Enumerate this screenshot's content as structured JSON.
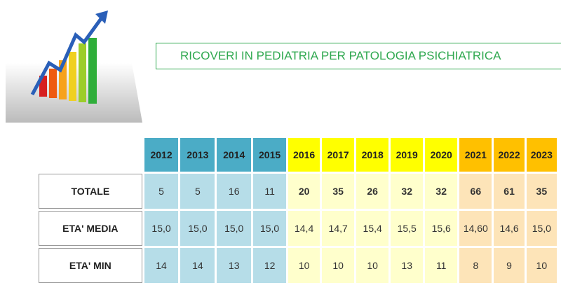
{
  "header": {
    "title": "RICOVERI IN PEDIATRIA PER PATOLOGIA PSICHIATRICA"
  },
  "table": {
    "columns": [
      "2012",
      "2013",
      "2014",
      "2015",
      "2016",
      "2017",
      "2018",
      "2019",
      "2020",
      "2021",
      "2022",
      "2023"
    ],
    "rows": [
      {
        "label": "TOTALE",
        "cells": [
          "5",
          "5",
          "16",
          "11",
          "20",
          "35",
          "26",
          "32",
          "32",
          "66",
          "61",
          "35"
        ]
      },
      {
        "label": "ETA' MEDIA",
        "cells": [
          "15,0",
          "15,0",
          "15,0",
          "15,0",
          "14,4",
          "14,7",
          "15,4",
          "15,5",
          "15,6",
          "14,60",
          "14,6",
          "15,0"
        ]
      },
      {
        "label": "ETA' MIN",
        "cells": [
          "14",
          "14",
          "13",
          "12",
          "10",
          "10",
          "10",
          "13",
          "11",
          "8",
          "9",
          "10"
        ]
      }
    ]
  }
}
